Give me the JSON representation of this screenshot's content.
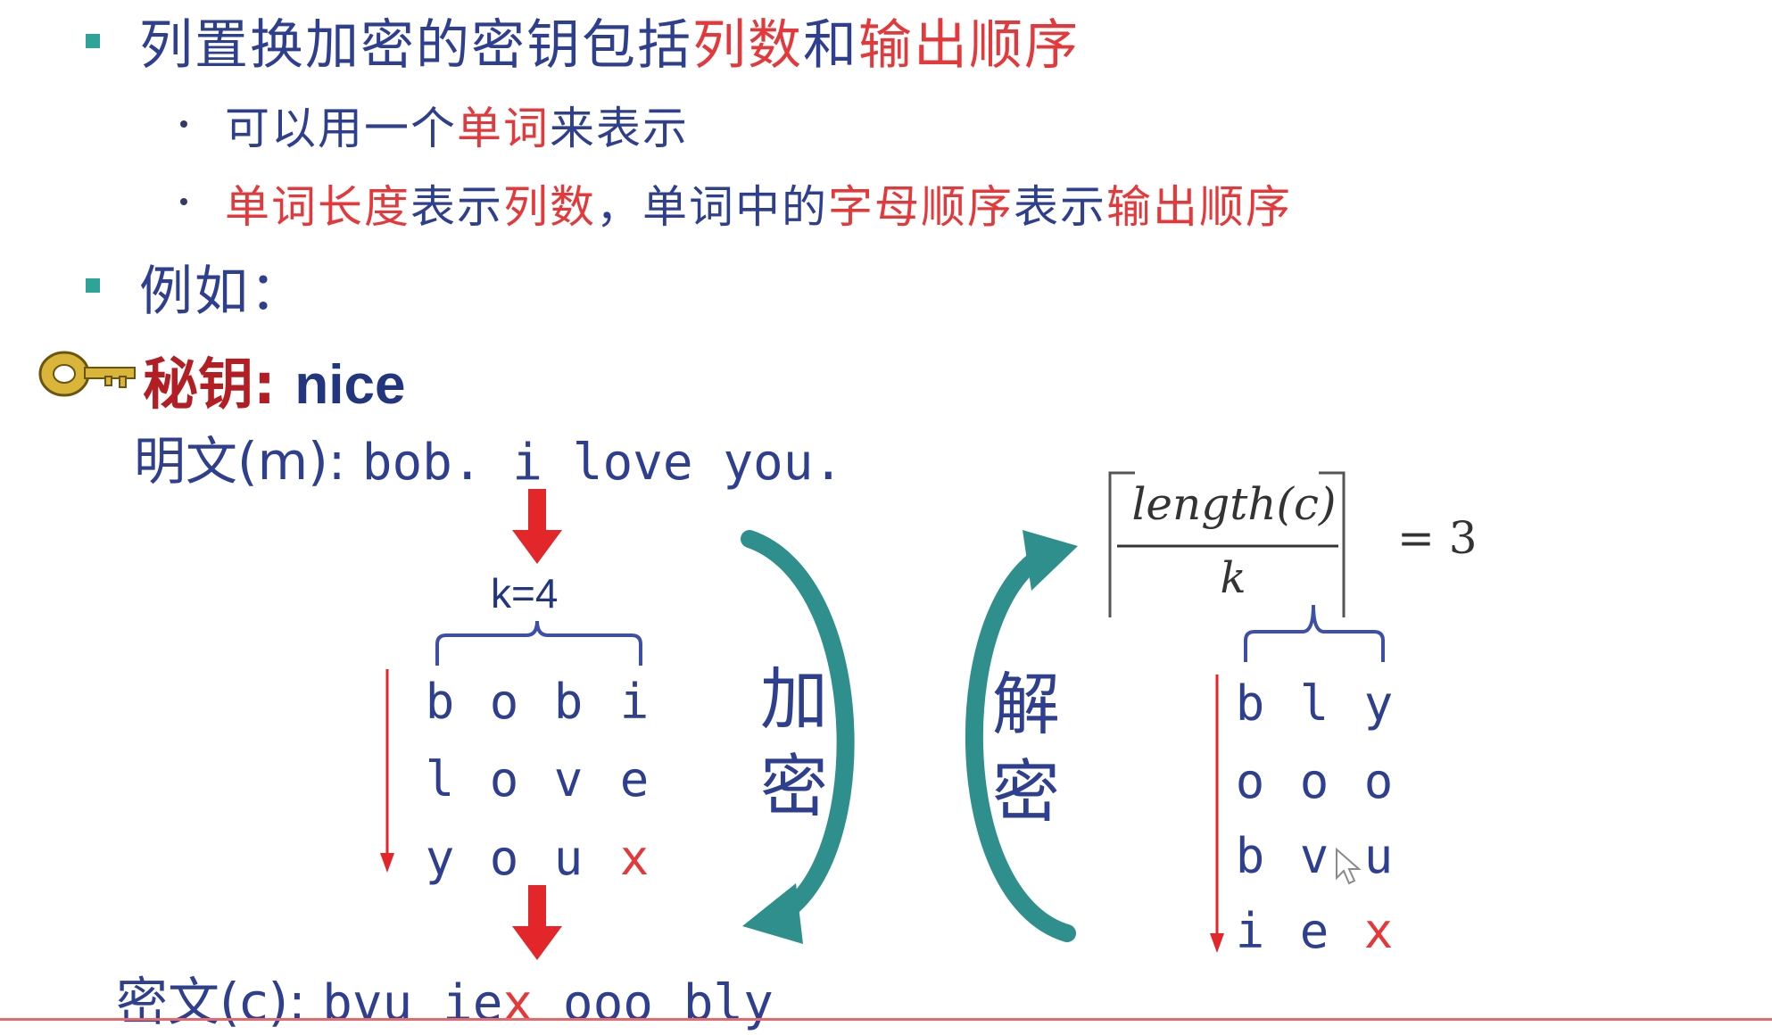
{
  "bullets": {
    "b1": {
      "part1": "列置换加密的密钥包括",
      "part2": "列数",
      "part3": "和",
      "part4": "输出顺序"
    },
    "b1_sub1": {
      "part1": "可以用一个",
      "part2": "单词",
      "part3": "来表示"
    },
    "b1_sub2": {
      "part1": "单词长度",
      "part2": "表示",
      "part3": "列数",
      "part4": "，单词中的",
      "part5": "字母顺序",
      "part6": "表示",
      "part7": "输出顺序"
    },
    "b2": "例如："
  },
  "key": {
    "label": "秘钥:",
    "value": "nice"
  },
  "plaintext": {
    "label": "明文(m):",
    "value": "bob. i love you."
  },
  "k_label": "k=4",
  "enc_grid": [
    [
      "b",
      "o",
      "b",
      "i"
    ],
    [
      "l",
      "o",
      "v",
      "e"
    ],
    [
      "y",
      "o",
      "u",
      "x"
    ]
  ],
  "enc_label": [
    "加",
    "密"
  ],
  "dec_label": [
    "解",
    "密"
  ],
  "formula": {
    "numerator": "length(c)",
    "denominator": "k",
    "result": "= 3"
  },
  "dec_grid": [
    [
      "b",
      "l",
      "y"
    ],
    [
      "o",
      "o",
      "o"
    ],
    [
      "b",
      "v",
      "u"
    ],
    [
      "i",
      "e",
      "x"
    ]
  ],
  "ciphertext": {
    "label": "密文(c):",
    "part1": "bvu ie",
    "part2": "x",
    "part3": " ooo bly"
  },
  "colors": {
    "blue_text": "#2f3f8f",
    "red_text": "#e4383a",
    "teal": "#2e8f8c",
    "bullet": "#2ea39a",
    "key_gold": "#d9b53a"
  },
  "icons": {
    "key": "key-icon",
    "arrow_down": "red-arrow-down-icon",
    "curved_arrow": "curved-arrow-icon"
  }
}
